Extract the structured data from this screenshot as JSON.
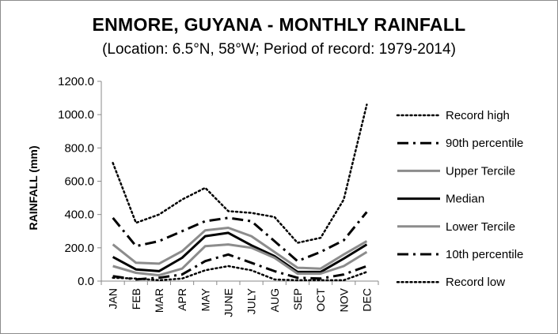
{
  "chart_data": {
    "type": "line",
    "title": "ENMORE, GUYANA - MONTHLY RAINFALL",
    "subtitle": "(Location: 6.5°N, 58°W; Period of record: 1979-2014)",
    "ylabel": "RAINFALL (mm)",
    "xlabel": "",
    "ylim": [
      0,
      1200
    ],
    "yticks": [
      "0.0",
      "200.0",
      "400.0",
      "600.0",
      "800.0",
      "1000.0",
      "1200.0"
    ],
    "categories": [
      "JAN",
      "FEB",
      "MAR",
      "APR",
      "MAY",
      "JUNE",
      "JULY",
      "AUG",
      "SEP",
      "OCT",
      "NOV",
      "DEC"
    ],
    "grid": false,
    "legend_position": "right",
    "series": [
      {
        "name": "Record high",
        "style": "dotted",
        "color": "#000000",
        "values": [
          710,
          350,
          400,
          490,
          560,
          420,
          410,
          385,
          230,
          260,
          490,
          1060
        ]
      },
      {
        "name": "90th percentile",
        "style": "dashdot",
        "color": "#000000",
        "values": [
          380,
          210,
          240,
          300,
          360,
          380,
          360,
          240,
          120,
          175,
          245,
          415
        ]
      },
      {
        "name": "Upper Tercile",
        "style": "solid",
        "color": "#8c8c8c",
        "values": [
          220,
          110,
          105,
          180,
          305,
          320,
          270,
          175,
          80,
          75,
          160,
          240
        ]
      },
      {
        "name": "Median",
        "style": "solid",
        "color": "#000000",
        "values": [
          145,
          70,
          60,
          140,
          270,
          290,
          215,
          150,
          55,
          55,
          135,
          220
        ]
      },
      {
        "name": "Lower Tercile",
        "style": "solid",
        "color": "#8c8c8c",
        "values": [
          90,
          50,
          35,
          75,
          210,
          220,
          200,
          140,
          45,
          45,
          90,
          175
        ]
      },
      {
        "name": "10th percentile",
        "style": "dashdot",
        "color": "#000000",
        "values": [
          30,
          10,
          20,
          40,
          120,
          160,
          110,
          60,
          20,
          15,
          40,
          90
        ]
      },
      {
        "name": "Record low",
        "style": "dotted",
        "color": "#000000",
        "values": [
          20,
          15,
          5,
          15,
          65,
          90,
          65,
          10,
          5,
          5,
          5,
          55
        ]
      }
    ]
  }
}
